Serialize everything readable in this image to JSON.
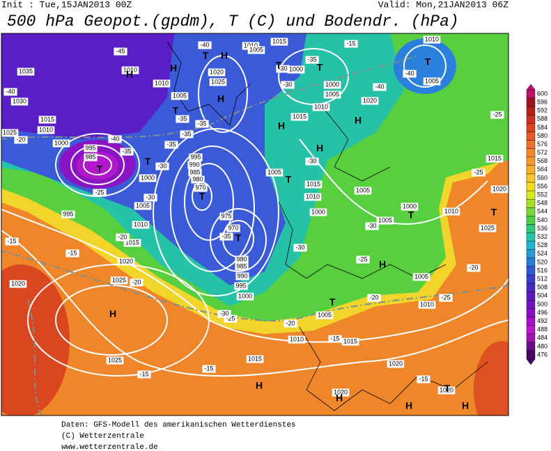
{
  "header": {
    "init": "Init : Tue,15JAN2013 00Z",
    "valid": "Valid: Mon,21JAN2013 06Z",
    "title": "500 hPa Geopot.(gpdm), T (C) und Bodendr. (hPa)"
  },
  "colorbar": {
    "levels": [
      600,
      596,
      592,
      588,
      584,
      580,
      576,
      572,
      568,
      564,
      560,
      556,
      552,
      548,
      544,
      540,
      536,
      532,
      528,
      524,
      520,
      516,
      512,
      508,
      504,
      500,
      496,
      492,
      488,
      484,
      480,
      476
    ],
    "colors": [
      "#c0106a",
      "#a0141e",
      "#b8201e",
      "#cc3020",
      "#dd4420",
      "#e85a22",
      "#ef7026",
      "#f3862a",
      "#f59a2c",
      "#f7b02c",
      "#f8c82a",
      "#f3dc24",
      "#d6e81e",
      "#a8e024",
      "#78d834",
      "#4cd046",
      "#2ec878",
      "#22c4a8",
      "#20b8cc",
      "#2498d8",
      "#2a78dc",
      "#3058d6",
      "#3a3ccc",
      "#4a28c4",
      "#5c18c0",
      "#7012c0",
      "#8a10c4",
      "#a410c8",
      "#bc14cc",
      "#a010b0",
      "#6c0c88",
      "#4a0866"
    ]
  },
  "map": {
    "pressure_labels": [
      "1035",
      "1030",
      "1015",
      "1010",
      "1025",
      "1000",
      "995",
      "985",
      "1010",
      "1010",
      "1005",
      "1020",
      "1025",
      "995",
      "990",
      "985",
      "980",
      "970",
      "1000",
      "1005",
      "995",
      "1010",
      "1015",
      "1020",
      "1025",
      "1020",
      "975",
      "970",
      "980",
      "985",
      "990",
      "995",
      "1000",
      "1005",
      "1010",
      "1005",
      "1015",
      "1000",
      "1000",
      "1005",
      "1010",
      "1015",
      "1020",
      "1015",
      "1010",
      "1000",
      "1005",
      "1005",
      "1000",
      "1010",
      "1025",
      "1020",
      "1015",
      "1005",
      "1010",
      "1005",
      "1010",
      "1005",
      "1010",
      "1015",
      "1015",
      "1020",
      "1020",
      "1020",
      "1025"
    ],
    "temperature_labels": [
      "-45",
      "-40",
      "-35",
      "-30",
      "-40",
      "-40",
      "-15",
      "-40",
      "-40",
      "-35",
      "-35",
      "-35",
      "-35",
      "-30",
      "-30",
      "-25",
      "-20",
      "-20",
      "-15",
      "-15",
      "-20",
      "-35",
      "-30",
      "-30",
      "-30",
      "-25",
      "-20",
      "-25",
      "-20",
      "-25",
      "-25",
      "-15",
      "-15",
      "-15",
      "-15",
      "-20",
      "-25",
      "-30",
      "-35",
      "-30"
    ],
    "centers": [
      "H",
      "T",
      "H",
      "H",
      "T",
      "T",
      "T",
      "T",
      "H",
      "H",
      "H",
      "T",
      "T",
      "T",
      "T",
      "T",
      "T",
      "T",
      "H",
      "T",
      "H",
      "H",
      "H",
      "H",
      "H",
      "T",
      "H"
    ]
  },
  "footer": {
    "lines": [
      "Daten: GFS-Modell des amerikanischen Wetterdienstes",
      "(C) Wetterzentrale",
      "www.wetterzentrale.de"
    ]
  }
}
